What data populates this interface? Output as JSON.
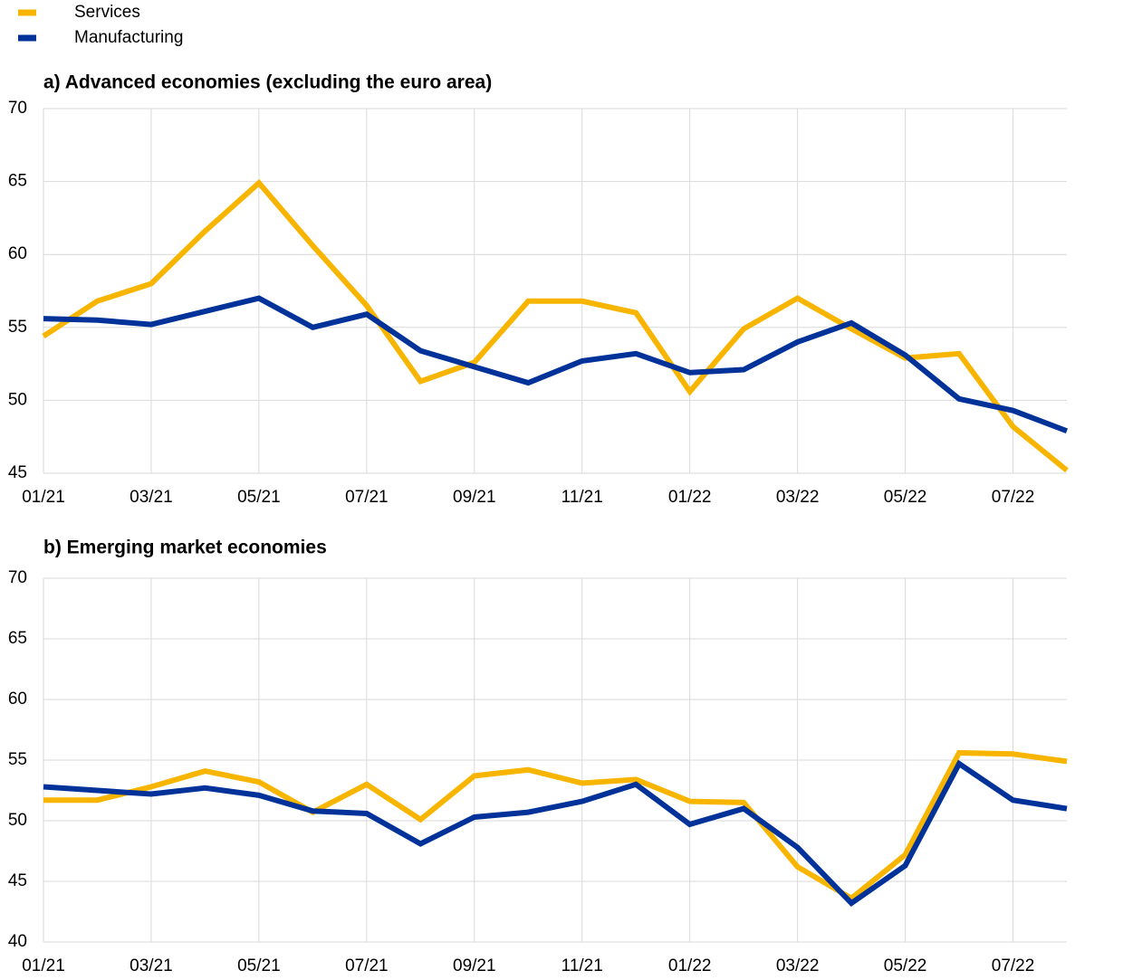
{
  "chart_data": [
    {
      "type": "line",
      "title": "a) Advanced economies (excluding the euro area)",
      "categories": [
        "01/21",
        null,
        "03/21",
        null,
        "05/21",
        null,
        "07/21",
        null,
        "09/21",
        null,
        "11/21",
        null,
        "01/22",
        null,
        "03/22",
        null,
        "05/22",
        null,
        "07/22",
        null
      ],
      "ylim": [
        45,
        70
      ],
      "yticks": [
        45,
        50,
        55,
        60,
        65,
        70
      ],
      "grid": true,
      "series": [
        {
          "name": "Services",
          "color": "#f8b500",
          "values": [
            54.4,
            56.8,
            58.0,
            61.6,
            64.9,
            60.6,
            56.5,
            51.3,
            52.6,
            56.8,
            56.8,
            56.0,
            50.6,
            54.9,
            57.0,
            54.9,
            52.9,
            53.2,
            48.2,
            45.2
          ]
        },
        {
          "name": "Manufacturing",
          "color": "#003299",
          "values": [
            55.6,
            55.5,
            55.2,
            56.1,
            57.0,
            55.0,
            55.9,
            53.4,
            52.3,
            51.2,
            52.7,
            53.2,
            51.9,
            52.1,
            54.0,
            55.3,
            53.1,
            50.1,
            49.3,
            47.9
          ]
        }
      ]
    },
    {
      "type": "line",
      "title": "b) Emerging market economies",
      "categories": [
        "01/21",
        null,
        "03/21",
        null,
        "05/21",
        null,
        "07/21",
        null,
        "09/21",
        null,
        "11/21",
        null,
        "01/22",
        null,
        "03/22",
        null,
        "05/22",
        null,
        "07/22",
        null
      ],
      "ylim": [
        40,
        70
      ],
      "yticks": [
        40,
        45,
        50,
        55,
        60,
        65,
        70
      ],
      "grid": true,
      "series": [
        {
          "color": "#f8b500",
          "values": [
            51.7,
            51.7,
            52.8,
            54.1,
            53.2,
            50.7,
            53.0,
            50.1,
            53.7,
            54.2,
            53.1,
            53.4,
            51.6,
            51.5,
            46.2,
            43.6,
            47.2,
            55.6,
            55.5,
            54.9
          ]
        },
        {
          "color": "#003299",
          "values": [
            52.8,
            52.5,
            52.2,
            52.7,
            52.1,
            50.8,
            50.6,
            48.1,
            50.3,
            50.7,
            51.6,
            53.0,
            49.7,
            51.0,
            47.8,
            43.2,
            46.3,
            54.7,
            51.7,
            51.0
          ]
        }
      ]
    }
  ]
}
